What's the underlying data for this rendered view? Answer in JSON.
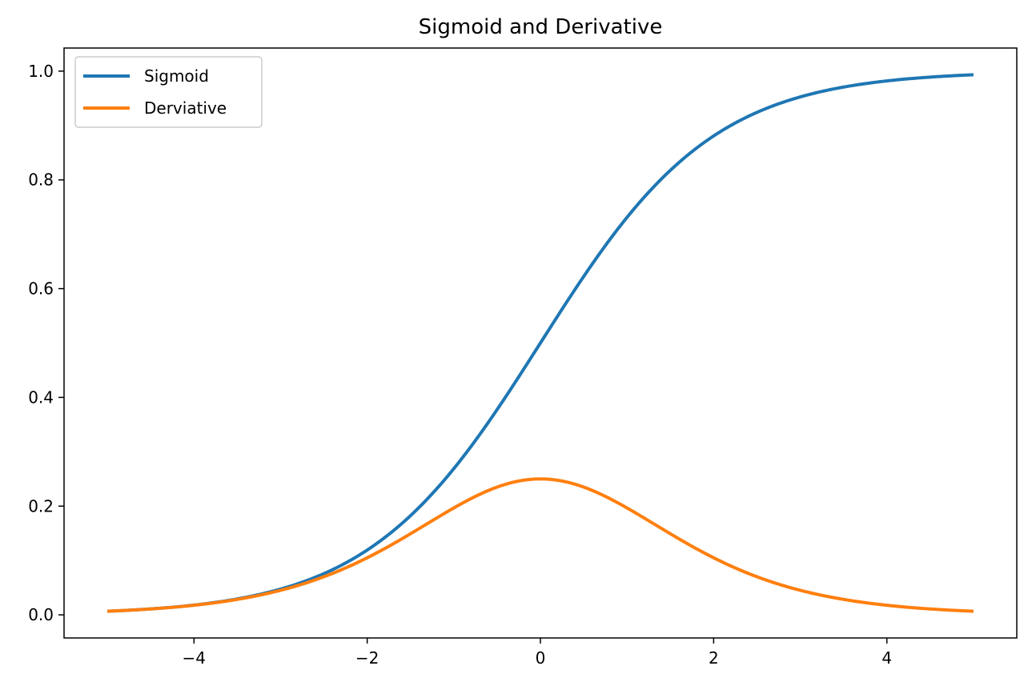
{
  "chart_data": {
    "type": "line",
    "title": "Sigmoid and Derivative",
    "xlabel": "",
    "ylabel": "",
    "xlim": [
      -5.5,
      5.5
    ],
    "ylim": [
      -0.0425,
      1.0425
    ],
    "x_ticks": [
      -4,
      -2,
      0,
      2,
      4
    ],
    "x_tick_labels": [
      "−4",
      "−2",
      "0",
      "2",
      "4"
    ],
    "y_ticks": [
      0.0,
      0.2,
      0.4,
      0.6,
      0.8,
      1.0
    ],
    "y_tick_labels": [
      "0.0",
      "0.2",
      "0.4",
      "0.6",
      "0.8",
      "1.0"
    ],
    "grid": false,
    "legend_position": "upper-left",
    "x": [
      -5,
      -4.5,
      -4,
      -3.5,
      -3,
      -2.5,
      -2,
      -1.5,
      -1,
      -0.5,
      0,
      0.5,
      1,
      1.5,
      2,
      2.5,
      3,
      3.5,
      4,
      4.5,
      5
    ],
    "series": [
      {
        "name": "Sigmoid",
        "color": "#1f77b4",
        "values": [
          0.0067,
          0.011,
          0.018,
          0.0293,
          0.0474,
          0.0759,
          0.1192,
          0.1824,
          0.2689,
          0.3775,
          0.5,
          0.6225,
          0.7311,
          0.8176,
          0.8808,
          0.9241,
          0.9526,
          0.9707,
          0.982,
          0.989,
          0.9933
        ]
      },
      {
        "name": "Derviative",
        "color": "#ff7f0e",
        "values": [
          0.0066,
          0.0109,
          0.0177,
          0.0285,
          0.0452,
          0.0701,
          0.105,
          0.1491,
          0.1966,
          0.235,
          0.25,
          0.235,
          0.1966,
          0.1491,
          0.105,
          0.0701,
          0.0452,
          0.0285,
          0.0177,
          0.0109,
          0.0066
        ]
      }
    ]
  }
}
